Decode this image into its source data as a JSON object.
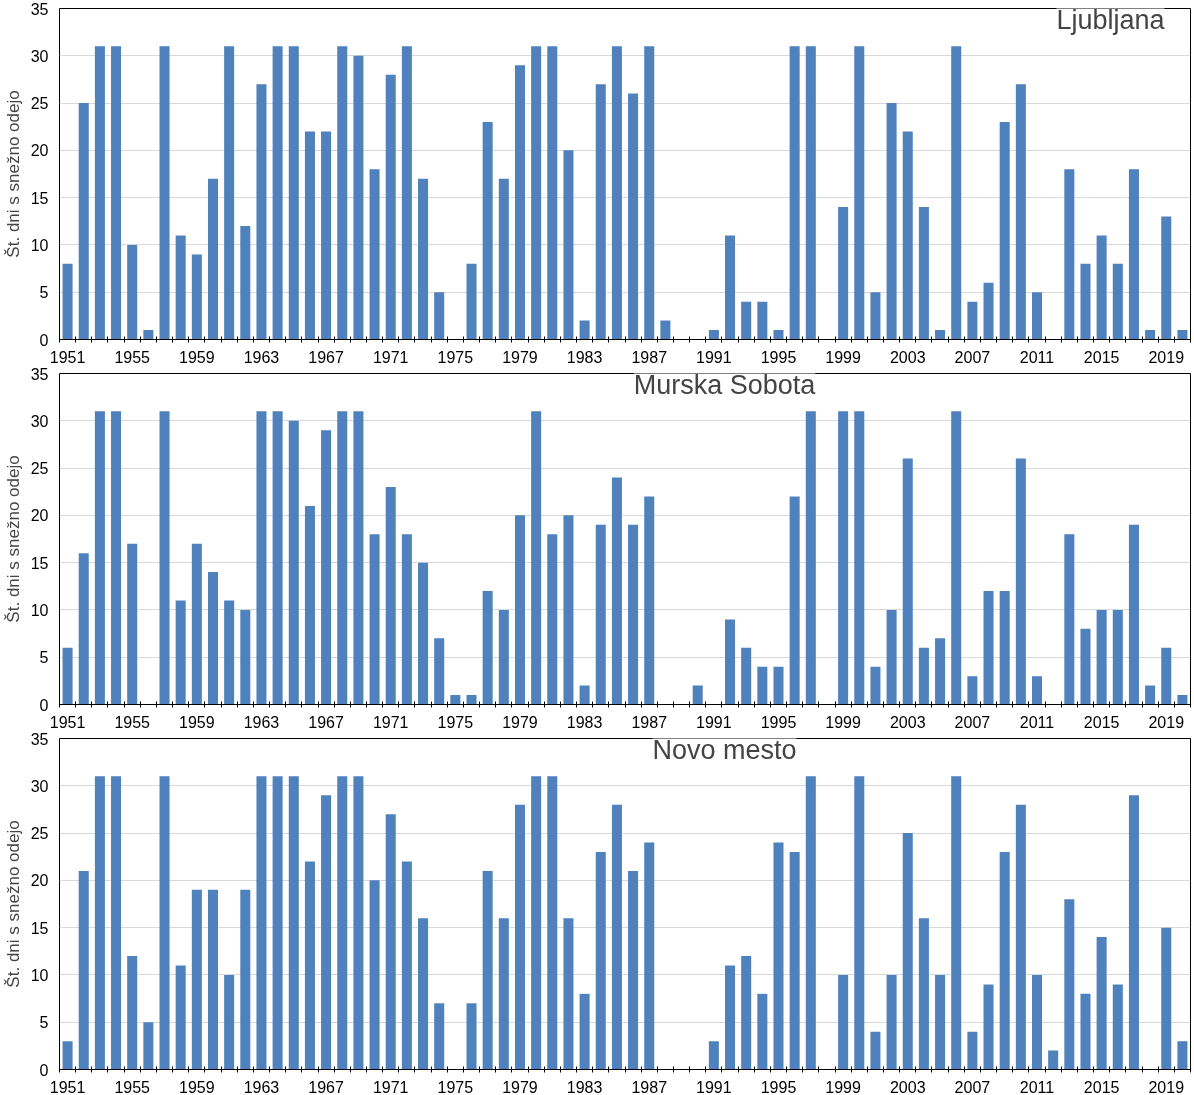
{
  "chart_data": [
    {
      "type": "bar",
      "title": "Ljubljana",
      "ylabel": "Št. dni s snežno odejo",
      "categories": [
        "1951",
        null,
        null,
        null,
        "1955",
        null,
        null,
        null,
        "1959",
        null,
        null,
        null,
        "1963",
        null,
        null,
        null,
        "1967",
        null,
        null,
        null,
        "1971",
        null,
        null,
        null,
        "1975",
        null,
        null,
        null,
        "1979",
        null,
        null,
        null,
        "1983",
        null,
        null,
        null,
        "1987",
        null,
        null,
        null,
        "1991",
        null,
        null,
        null,
        "1995",
        null,
        null,
        null,
        "1999",
        null,
        null,
        null,
        "2003",
        null,
        null,
        null,
        "2007",
        null,
        null,
        null,
        "2011",
        null,
        null,
        null,
        "2015",
        null,
        null,
        null,
        "2019",
        null
      ],
      "values": [
        8,
        25,
        31,
        31,
        10,
        1,
        31,
        11,
        9,
        17,
        31,
        12,
        27,
        31,
        31,
        22,
        22,
        31,
        30,
        18,
        28,
        31,
        17,
        5,
        0,
        8,
        23,
        17,
        29,
        31,
        31,
        20,
        2,
        27,
        31,
        26,
        31,
        2,
        0,
        0,
        1,
        11,
        4,
        4,
        1,
        31,
        31,
        0,
        14,
        31,
        5,
        25,
        22,
        14,
        1,
        31,
        4,
        6,
        23,
        27,
        5,
        0,
        18,
        8,
        11,
        8,
        18,
        1,
        13,
        1
      ],
      "color": "#4f81bd",
      "ylim": [
        0,
        35
      ],
      "yticks": [
        0,
        5,
        10,
        15,
        20,
        25,
        30,
        35
      ],
      "grid": "y"
    },
    {
      "type": "bar",
      "title": "Murska Sobota",
      "ylabel": "Št. dni s snežno odejo",
      "categories": [
        "1951",
        null,
        null,
        null,
        "1955",
        null,
        null,
        null,
        "1959",
        null,
        null,
        null,
        "1963",
        null,
        null,
        null,
        "1967",
        null,
        null,
        null,
        "1971",
        null,
        null,
        null,
        "1975",
        null,
        null,
        null,
        "1979",
        null,
        null,
        null,
        "1983",
        null,
        null,
        null,
        "1987",
        null,
        null,
        null,
        "1991",
        null,
        null,
        null,
        "1995",
        null,
        null,
        null,
        "1999",
        null,
        null,
        null,
        "2003",
        null,
        null,
        null,
        "2007",
        null,
        null,
        null,
        "2011",
        null,
        null,
        null,
        "2015",
        null,
        null,
        null,
        "2019",
        null
      ],
      "values": [
        6,
        16,
        31,
        31,
        17,
        0,
        31,
        11,
        17,
        14,
        11,
        10,
        31,
        31,
        30,
        21,
        29,
        31,
        31,
        18,
        23,
        18,
        15,
        7,
        1,
        1,
        12,
        10,
        20,
        31,
        18,
        20,
        2,
        19,
        24,
        19,
        22,
        0,
        0,
        2,
        0,
        9,
        6,
        4,
        4,
        22,
        31,
        0,
        31,
        31,
        4,
        10,
        26,
        6,
        7,
        31,
        3,
        12,
        12,
        26,
        3,
        0,
        18,
        8,
        10,
        10,
        19,
        2,
        6,
        1
      ],
      "color": "#4f81bd",
      "ylim": [
        0,
        35
      ],
      "yticks": [
        0,
        5,
        10,
        15,
        20,
        25,
        30,
        35
      ],
      "grid": "y"
    },
    {
      "type": "bar",
      "title": "Novo mesto",
      "ylabel": "Št. dni s snežno odejo",
      "categories": [
        "1951",
        null,
        null,
        null,
        "1955",
        null,
        null,
        null,
        "1959",
        null,
        null,
        null,
        "1963",
        null,
        null,
        null,
        "1967",
        null,
        null,
        null,
        "1971",
        null,
        null,
        null,
        "1975",
        null,
        null,
        null,
        "1979",
        null,
        null,
        null,
        "1983",
        null,
        null,
        null,
        "1987",
        null,
        null,
        null,
        "1991",
        null,
        null,
        null,
        "1995",
        null,
        null,
        null,
        "1999",
        null,
        null,
        null,
        "2003",
        null,
        null,
        null,
        "2007",
        null,
        null,
        null,
        "2011",
        null,
        null,
        null,
        "2015",
        null,
        null,
        null,
        "2019",
        null
      ],
      "values": [
        3,
        21,
        31,
        31,
        12,
        5,
        31,
        11,
        19,
        19,
        10,
        19,
        31,
        31,
        31,
        22,
        29,
        31,
        31,
        20,
        27,
        22,
        16,
        7,
        0,
        7,
        21,
        16,
        28,
        31,
        31,
        16,
        8,
        23,
        28,
        21,
        24,
        0,
        0,
        0,
        3,
        11,
        12,
        8,
        24,
        23,
        31,
        0,
        10,
        31,
        4,
        10,
        25,
        16,
        10,
        31,
        4,
        9,
        23,
        28,
        10,
        2,
        18,
        8,
        14,
        9,
        29,
        0,
        15,
        3
      ],
      "color": "#4f81bd",
      "ylim": [
        0,
        35
      ],
      "yticks": [
        0,
        5,
        10,
        15,
        20,
        25,
        30,
        35
      ],
      "grid": "y"
    }
  ]
}
